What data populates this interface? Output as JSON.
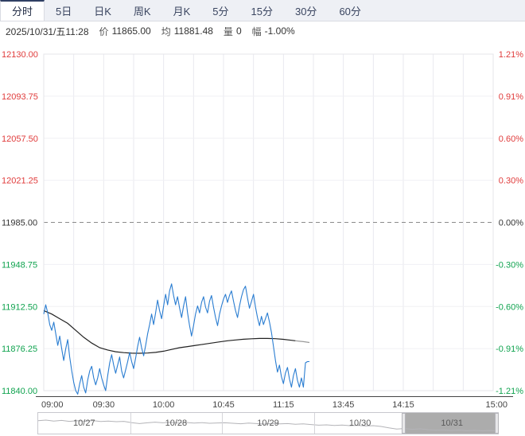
{
  "tabs": {
    "items": [
      "分时",
      "5日",
      "日K",
      "周K",
      "月K",
      "5分",
      "15分",
      "30分",
      "60分"
    ],
    "active_index": 0
  },
  "info": {
    "datetime": "2025/10/31/五11:28",
    "price_label": "价",
    "price": "11865.00",
    "avg_label": "均",
    "avg": "11881.48",
    "volume_label": "量",
    "volume": "0",
    "range_label": "幅",
    "range": "-1.00%"
  },
  "colors": {
    "up_red": "#e03c3c",
    "down_green": "#10a34f",
    "neutral": "#333333",
    "price_line": "#2a7dd1",
    "avg_line": "#222222",
    "avg_line_tail": "#999999",
    "grid_faint": "#f0f0f4",
    "grid_vertical": "#e9e9ef",
    "prev_close_dash": "#8a8a8a",
    "axis_line": "#444444",
    "spark_line": "#b4b4b8"
  },
  "chart_data": {
    "type": "line",
    "title": "intraday time-share chart (分时)",
    "prev_close": 11985.0,
    "ylim": [
      11840,
      12130
    ],
    "y_axis_left": [
      "12130.00",
      "12093.75",
      "12057.50",
      "12021.25",
      "11985.00",
      "11948.75",
      "11912.50",
      "11876.25",
      "11840.00"
    ],
    "y_axis_right": [
      "1.21%",
      "0.91%",
      "0.60%",
      "0.30%",
      "0.00%",
      "-0.30%",
      "-0.60%",
      "-0.91%",
      "-1.21%"
    ],
    "x_ticks": [
      {
        "label": "09:00",
        "minute": 0
      },
      {
        "label": "09:30",
        "minute": 30
      },
      {
        "label": "10:00",
        "minute": 60
      },
      {
        "label": "10:45",
        "minute": 90
      },
      {
        "label": "11:15",
        "minute": 120
      },
      {
        "label": "13:45",
        "minute": 150
      },
      {
        "label": "14:15",
        "minute": 180
      },
      {
        "label": "15:00",
        "minute": 225
      }
    ],
    "session_minutes": 225,
    "last_minute": 133,
    "grid": true,
    "legend_position": "none",
    "series": [
      {
        "name": "price",
        "points": [
          [
            0,
            11906
          ],
          [
            1,
            11914
          ],
          [
            2,
            11907
          ],
          [
            3,
            11897
          ],
          [
            4,
            11892
          ],
          [
            5,
            11899
          ],
          [
            6,
            11889
          ],
          [
            7,
            11879
          ],
          [
            8,
            11887
          ],
          [
            9,
            11876
          ],
          [
            10,
            11866
          ],
          [
            11,
            11876
          ],
          [
            12,
            11884
          ],
          [
            13,
            11869
          ],
          [
            14,
            11857
          ],
          [
            15,
            11847
          ],
          [
            16,
            11840
          ],
          [
            17,
            11837
          ],
          [
            18,
            11846
          ],
          [
            19,
            11853
          ],
          [
            20,
            11843
          ],
          [
            21,
            11838
          ],
          [
            22,
            11849
          ],
          [
            23,
            11857
          ],
          [
            24,
            11861
          ],
          [
            25,
            11851
          ],
          [
            26,
            11845
          ],
          [
            27,
            11851
          ],
          [
            28,
            11859
          ],
          [
            29,
            11851
          ],
          [
            30,
            11845
          ],
          [
            31,
            11840
          ],
          [
            32,
            11853
          ],
          [
            33,
            11864
          ],
          [
            34,
            11871
          ],
          [
            35,
            11862
          ],
          [
            36,
            11855
          ],
          [
            37,
            11862
          ],
          [
            38,
            11869
          ],
          [
            39,
            11857
          ],
          [
            40,
            11851
          ],
          [
            41,
            11858
          ],
          [
            42,
            11865
          ],
          [
            43,
            11873
          ],
          [
            44,
            11865
          ],
          [
            45,
            11859
          ],
          [
            46,
            11868
          ],
          [
            47,
            11878
          ],
          [
            48,
            11886
          ],
          [
            49,
            11877
          ],
          [
            50,
            11870
          ],
          [
            51,
            11879
          ],
          [
            52,
            11889
          ],
          [
            53,
            11897
          ],
          [
            54,
            11906
          ],
          [
            55,
            11897
          ],
          [
            56,
            11907
          ],
          [
            57,
            11918
          ],
          [
            58,
            11909
          ],
          [
            59,
            11902
          ],
          [
            60,
            11913
          ],
          [
            61,
            11923
          ],
          [
            62,
            11914
          ],
          [
            63,
            11926
          ],
          [
            64,
            11932
          ],
          [
            65,
            11922
          ],
          [
            66,
            11914
          ],
          [
            67,
            11921
          ],
          [
            68,
            11911
          ],
          [
            69,
            11903
          ],
          [
            70,
            11913
          ],
          [
            71,
            11921
          ],
          [
            72,
            11907
          ],
          [
            73,
            11896
          ],
          [
            74,
            11887
          ],
          [
            75,
            11896
          ],
          [
            76,
            11906
          ],
          [
            77,
            11913
          ],
          [
            78,
            11907
          ],
          [
            79,
            11916
          ],
          [
            80,
            11921
          ],
          [
            81,
            11912
          ],
          [
            82,
            11907
          ],
          [
            83,
            11917
          ],
          [
            84,
            11922
          ],
          [
            85,
            11912
          ],
          [
            86,
            11903
          ],
          [
            87,
            11896
          ],
          [
            88,
            11906
          ],
          [
            89,
            11913
          ],
          [
            90,
            11919
          ],
          [
            91,
            11923
          ],
          [
            92,
            11916
          ],
          [
            93,
            11922
          ],
          [
            94,
            11926
          ],
          [
            95,
            11917
          ],
          [
            96,
            11909
          ],
          [
            97,
            11903
          ],
          [
            98,
            11913
          ],
          [
            99,
            11921
          ],
          [
            100,
            11927
          ],
          [
            101,
            11930
          ],
          [
            102,
            11920
          ],
          [
            103,
            11911
          ],
          [
            104,
            11917
          ],
          [
            105,
            11923
          ],
          [
            106,
            11912
          ],
          [
            107,
            11903
          ],
          [
            108,
            11896
          ],
          [
            109,
            11904
          ],
          [
            110,
            11897
          ],
          [
            111,
            11902
          ],
          [
            112,
            11907
          ],
          [
            113,
            11899
          ],
          [
            114,
            11890
          ],
          [
            115,
            11878
          ],
          [
            116,
            11866
          ],
          [
            117,
            11856
          ],
          [
            118,
            11862
          ],
          [
            119,
            11852
          ],
          [
            120,
            11846
          ],
          [
            121,
            11855
          ],
          [
            122,
            11860
          ],
          [
            123,
            11850
          ],
          [
            124,
            11843
          ],
          [
            125,
            11853
          ],
          [
            126,
            11859
          ],
          [
            127,
            11849
          ],
          [
            128,
            11843
          ],
          [
            129,
            11851
          ],
          [
            130,
            11843
          ],
          [
            131,
            11864
          ],
          [
            132,
            11865
          ],
          [
            133,
            11865
          ]
        ]
      },
      {
        "name": "average",
        "points": [
          [
            0,
            11909
          ],
          [
            4,
            11906
          ],
          [
            8,
            11902
          ],
          [
            12,
            11898
          ],
          [
            16,
            11892
          ],
          [
            20,
            11886
          ],
          [
            24,
            11881
          ],
          [
            28,
            11877
          ],
          [
            32,
            11875
          ],
          [
            36,
            11873.5
          ],
          [
            40,
            11872.8
          ],
          [
            44,
            11872.3
          ],
          [
            48,
            11872.2
          ],
          [
            52,
            11872.4
          ],
          [
            56,
            11873
          ],
          [
            60,
            11874
          ],
          [
            64,
            11875.5
          ],
          [
            68,
            11877
          ],
          [
            72,
            11878
          ],
          [
            76,
            11879
          ],
          [
            80,
            11880
          ],
          [
            84,
            11881
          ],
          [
            88,
            11882
          ],
          [
            92,
            11883
          ],
          [
            96,
            11883.7
          ],
          [
            100,
            11884.3
          ],
          [
            104,
            11884.7
          ],
          [
            108,
            11885
          ],
          [
            112,
            11885
          ],
          [
            116,
            11884.8
          ],
          [
            120,
            11884.2
          ],
          [
            124,
            11883.4
          ],
          [
            126,
            11883
          ],
          [
            128,
            11882.6
          ],
          [
            130,
            11882.2
          ],
          [
            133,
            11881.5
          ]
        ]
      }
    ]
  },
  "slider": {
    "dates": [
      "10/27",
      "10/28",
      "10/29",
      "10/30",
      "10/31"
    ],
    "selected": "10/31",
    "sparkline": [
      0.34,
      0.3,
      0.36,
      0.32,
      0.38,
      0.34,
      0.37,
      0.33,
      0.39,
      0.36,
      0.4,
      0.38,
      0.46,
      0.52,
      0.47,
      0.43,
      0.47,
      0.44,
      0.48,
      0.45,
      0.49,
      0.46,
      0.5,
      0.48,
      0.47,
      0.5,
      0.53,
      0.49,
      0.52,
      0.55,
      0.51,
      0.54,
      0.52,
      0.56,
      0.54,
      0.58,
      0.62,
      0.6,
      0.64,
      0.61,
      0.65,
      0.63,
      0.67,
      0.65,
      0.7,
      0.79,
      0.86,
      0.83,
      0.88,
      0.85,
      0.9,
      0.93,
      0.91,
      0.95,
      0.92,
      0.96,
      0.94,
      0.97,
      0.95,
      0.98
    ]
  }
}
